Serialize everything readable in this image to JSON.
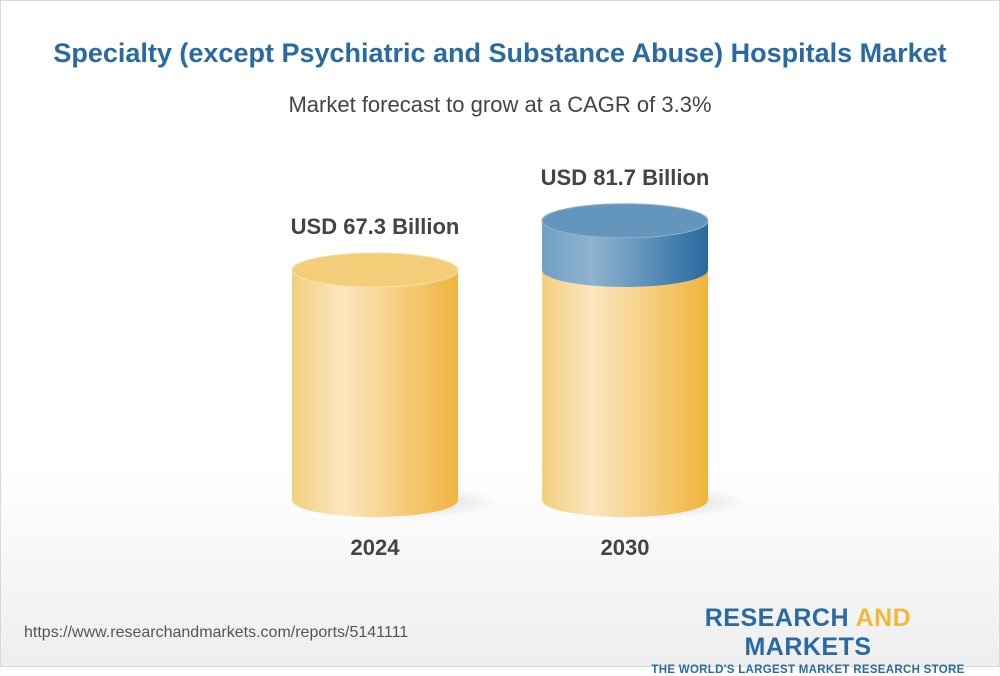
{
  "title": "Specialty (except Psychiatric and Substance Abuse) Hospitals Market",
  "subtitle": "Market forecast to grow at a CAGR of 3.3%",
  "chart_data": {
    "type": "bar",
    "style": "3d-cylinder",
    "categories": [
      "2024",
      "2030"
    ],
    "values": [
      67.3,
      81.7
    ],
    "data_labels": [
      "USD 67.3 Billion",
      "USD 81.7 Billion"
    ],
    "unit": "USD Billion",
    "cagr": "3.3%",
    "colors": {
      "base": "#f0b93a",
      "growth": "#2a6aa3"
    }
  },
  "footer": {
    "url": "https://www.researchandmarkets.com/reports/5141111",
    "logo_part1": "RESEARCH ",
    "logo_part2": "AND",
    "logo_part3": " MARKETS",
    "tagline": "THE WORLD'S LARGEST MARKET RESEARCH STORE"
  }
}
